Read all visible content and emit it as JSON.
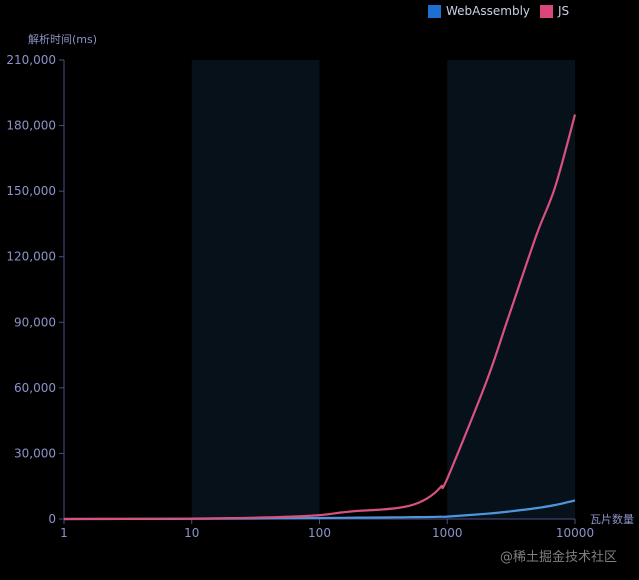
{
  "chart_data": {
    "type": "line",
    "title": "",
    "ylabel": "解析时间(ms)",
    "xlabel": "瓦片数量",
    "xscale": "log",
    "x": [
      1,
      2,
      5,
      10,
      20,
      50,
      100,
      150,
      200,
      300,
      400,
      500,
      600,
      700,
      800,
      900,
      1000,
      2000,
      3000,
      5000,
      7000,
      10000
    ],
    "xticks": [
      "1",
      "10",
      "100",
      "1000",
      "10000"
    ],
    "ylim": [
      0,
      210000
    ],
    "yticks": [
      "0",
      "30,000",
      "60,000",
      "90,000",
      "120,000",
      "150,000",
      "180,000",
      "210,000"
    ],
    "series": [
      {
        "name": "WebAssembly",
        "color": "#1f6fd1",
        "line_color": "#4f95dc",
        "values": [
          10,
          20,
          40,
          80,
          150,
          300,
          450,
          550,
          620,
          700,
          760,
          820,
          880,
          930,
          980,
          1030,
          1100,
          2400,
          3400,
          5000,
          6400,
          8500
        ]
      },
      {
        "name": "JS",
        "color": "#d9477b",
        "line_color": "#d9517e",
        "values": [
          20,
          40,
          100,
          200,
          400,
          900,
          1800,
          3000,
          3700,
          4300,
          5000,
          6000,
          7500,
          9500,
          12000,
          15000,
          18500,
          62000,
          92000,
          130000,
          152000,
          185000
        ]
      }
    ],
    "shaded_bands": [
      [
        10,
        100
      ],
      [
        1000,
        10000
      ]
    ],
    "legend_position": "top-right",
    "grid": false
  },
  "watermark": "@稀土掘金技术社区"
}
